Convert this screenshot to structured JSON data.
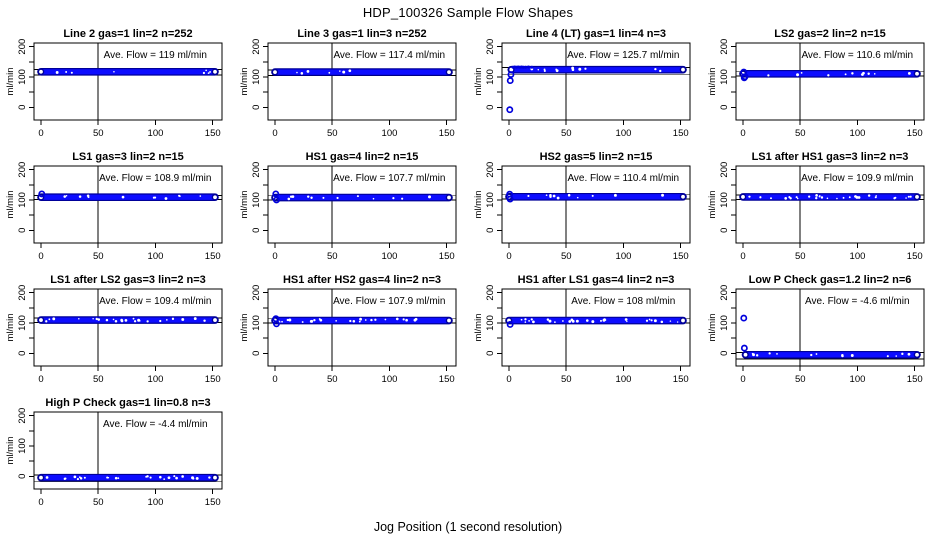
{
  "chart_data": {
    "type": "scatter",
    "title": "HDP_100326  Sample Flow Shapes",
    "xlabel": "Jog Position (1 second resolution)",
    "ylabel": "ml/min",
    "ave_prefix": "Ave. Flow =",
    "ave_suffix": "ml/min",
    "axes": {
      "x_ticks": [
        0,
        50,
        100,
        150
      ],
      "y_ticks_all": [
        0,
        50,
        100,
        150,
        200
      ],
      "y_ticks_labeled": [
        0,
        100,
        200
      ],
      "xlim": [
        -6.1,
        158.1
      ],
      "ylim": [
        -42,
        212
      ],
      "vline_x": 50,
      "grid": false
    },
    "colors": {
      "point_blue": "#0000dd",
      "band_core": "#0d0dff",
      "band_edge": "#000099",
      "axis_black": "#000000",
      "background": "#ffffff"
    },
    "panels": [
      {
        "title": "Line 2 gas=1 lin=2 n=252",
        "ave_flow": "119",
        "band_y": 117,
        "x0": 0,
        "x1": 152,
        "ref_hi": 124,
        "ref_lo": 106,
        "outliers": [],
        "above": [],
        "specks": 8
      },
      {
        "title": "Line 3 gas=1 lin=3 n=252",
        "ave_flow": "117.4",
        "band_y": 116,
        "x0": 0,
        "x1": 152,
        "ref_hi": 123,
        "ref_lo": 105,
        "outliers": [],
        "above": [],
        "specks": 8
      },
      {
        "title": "Line 4 (LT) gas=1 lin=4 n=3",
        "ave_flow": "125.7",
        "band_y": 124,
        "x0": 2,
        "x1": 152,
        "ref_hi": 131,
        "ref_lo": 109,
        "outliers": [
          [
            0.7,
            -8
          ],
          [
            1.1,
            88
          ],
          [
            1.7,
            108
          ]
        ],
        "above": [
          [
            3.5,
            132
          ],
          [
            5,
            133
          ],
          [
            6.5,
            132
          ],
          [
            8,
            133
          ],
          [
            9.5,
            132
          ],
          [
            11,
            133
          ],
          [
            12.5,
            132
          ],
          [
            14.5,
            132
          ],
          [
            17,
            133
          ],
          [
            20,
            132
          ]
        ],
        "specks": 12
      },
      {
        "title": "LS2 gas=2 lin=2 n=15",
        "ave_flow": "110.6",
        "band_y": 110.5,
        "x0": 0,
        "x1": 152,
        "ref_hi": 117,
        "ref_lo": 103,
        "outliers": [
          [
            0.7,
            116
          ],
          [
            1.1,
            97
          ],
          [
            1.8,
            101
          ]
        ],
        "above": [],
        "specks": 12
      },
      {
        "title": "LS1 gas=3 lin=2 n=15",
        "ave_flow": "108.9",
        "band_y": 109,
        "x0": 0,
        "x1": 152,
        "ref_hi": 115,
        "ref_lo": 101,
        "outliers": [
          [
            0.7,
            120
          ]
        ],
        "above": [],
        "specks": 12
      },
      {
        "title": "HS1 gas=4 lin=2 n=15",
        "ave_flow": "107.7",
        "band_y": 108,
        "x0": 0,
        "x1": 152,
        "ref_hi": 114,
        "ref_lo": 100,
        "outliers": [
          [
            0.7,
            120
          ],
          [
            1.3,
            100
          ]
        ],
        "above": [],
        "specks": 12
      },
      {
        "title": "HS2 gas=5 lin=2 n=15",
        "ave_flow": "110.4",
        "band_y": 110.5,
        "x0": 0,
        "x1": 152,
        "ref_hi": 117,
        "ref_lo": 103,
        "outliers": [
          [
            0.6,
            119
          ],
          [
            1,
            103
          ]
        ],
        "above": [],
        "specks": 12
      },
      {
        "title": "LS1 after HS1 gas=3 lin=2 n=3",
        "ave_flow": "109.9",
        "band_y": 110,
        "x0": 0,
        "x1": 152,
        "ref_hi": 116,
        "ref_lo": 102,
        "outliers": [],
        "above": [],
        "specks": 30
      },
      {
        "title": "LS1 after LS2 gas=3 lin=2 n=3",
        "ave_flow": "109.4",
        "band_y": 109.5,
        "x0": 0,
        "x1": 152,
        "ref_hi": 116,
        "ref_lo": 102,
        "outliers": [],
        "above": [],
        "specks": 24
      },
      {
        "title": "HS1 after HS2 gas=4 lin=2 n=3",
        "ave_flow": "107.9",
        "band_y": 108,
        "x0": 0,
        "x1": 152,
        "ref_hi": 114,
        "ref_lo": 100,
        "outliers": [
          [
            0.8,
            114
          ],
          [
            1.3,
            97
          ]
        ],
        "above": [],
        "specks": 24
      },
      {
        "title": "HS1 after LS1 gas=4 lin=2 n=3",
        "ave_flow": "108",
        "band_y": 108,
        "x0": 0,
        "x1": 152,
        "ref_hi": 114,
        "ref_lo": 100,
        "outliers": [
          [
            1,
            95
          ]
        ],
        "above": [],
        "specks": 30
      },
      {
        "title": "Low P Check gas=1.2 lin=2 n=6",
        "ave_flow": "-4.6",
        "band_y": -5,
        "x0": 2.2,
        "x1": 152,
        "ref_hi": 3,
        "ref_lo": -19,
        "outliers": [
          [
            0.7,
            116
          ],
          [
            1.2,
            17
          ]
        ],
        "above": [],
        "specks": 14
      },
      {
        "title": "High P Check gas=1 lin=0.8 n=3",
        "ave_flow": "-4.4",
        "band_y": -4.5,
        "x0": 0,
        "x1": 152,
        "ref_hi": 4,
        "ref_lo": -18,
        "outliers": [],
        "above": [],
        "specks": 26
      }
    ]
  }
}
